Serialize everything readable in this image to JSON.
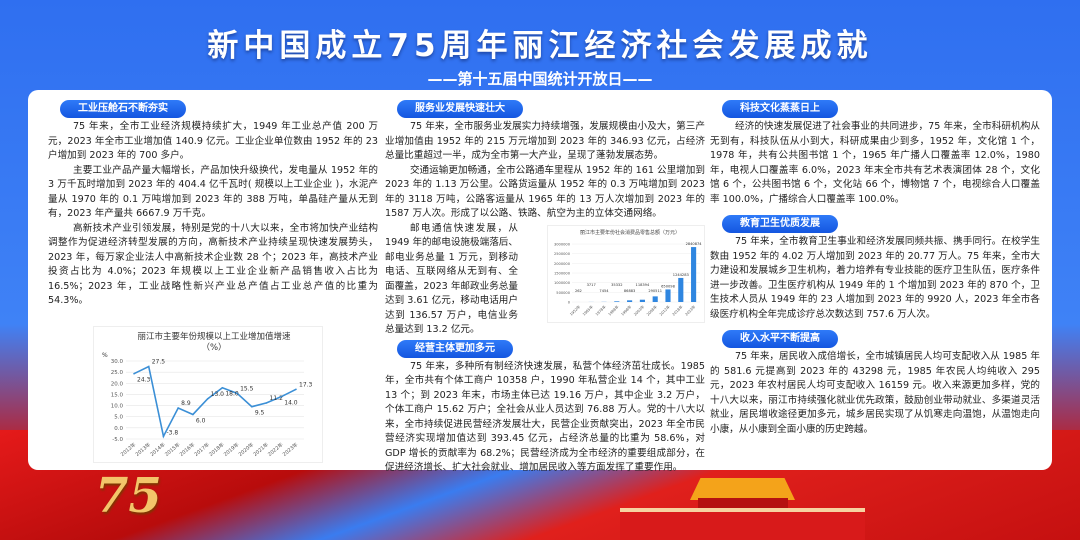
{
  "header": {
    "title": "新中国成立75周年丽江经济社会发展成就",
    "subtitle": "——第十五届中国统计开放日——"
  },
  "sections": {
    "industry": {
      "heading": "工业压舱石不断夯实",
      "paragraphs": [
        "75 年来，全市工业经济规模持续扩大，1949 年工业总产值 200 万元，2023 年全市工业增加值 140.9 亿元。工业企业单位数由 1952 年的 23 户增加到 2023 年的 700 多户。",
        "主要工业产品产量大幅增长，产品加快升级换代，发电量从 1952 年的 3 万千瓦时增加到 2023 年的 404.4 亿千瓦时( 规模以上工业企业 )，水泥产量从 1970 年的 0.1 万吨增加到 2023 年的 388 万吨，单晶硅产量从无到有，2023 年产量共 6667.9 万千克。",
        "高新技术产业引领发展，特别是党的十八大以来，全市将加快产业结构调整作为促进经济转型发展的方向，高新技术产业持续呈现快速发展势头，2023 年，每万家企业法人中高新技术企业数 28 个；2023 年，高技术产业投资占比为 4.0%；2023 年规模以上工业企业新产品销售收入占比为 16.5%；2023 年，工业战略性新兴产业总产值占工业总产值的比重为 54.3%。"
      ]
    },
    "services": {
      "heading": "服务业发展快速壮大",
      "paragraphs": [
        "75 年来，全市服务业发展实力持续增强，发展规模由小及大，第三产业增加值由 1952 年的 215 万元增加到 2023 年的 346.93 亿元，占经济总量比重超过一半，成为全市第一大产业，呈现了蓬勃发展态势。",
        "交通运输更加畅通，全市公路通车里程从 1952 年的 161 公里增加到 2023 年的 1.13 万公里。公路货运量从 1952 年的 0.3 万吨增加到 2023 年的 3118 万吨，公路客运量从 1965 年的 13 万人次增加到 2023 年的 1587 万人次。形成了以公路、铁路、航空为主的立体交通网络。",
        "邮电通信快速发展，从 1949 年的邮电设施极端落后、邮电业务总量 1 万元，到移动电话、互联网络从无到有、全面覆盖，2023 年邮政业务总量达到 3.61 亿元，移动电话用户达到 136.57 万户，电信业务总量达到 13.2 亿元。"
      ]
    },
    "business": {
      "heading": "经营主体更加多元",
      "paragraphs": [
        "75 年来，多种所有制经济快速发展，私营个体经济茁壮成长。1985 年，全市共有个体工商户 10358 户，1990 年私营企业 14 个，其中工业 13 个；到 2023 年末，市场主体已达 19.16 万户，其中企业 3.2 万户，个体工商户 15.62 万户；全社会从业人员达到 76.88 万人。党的十八大以来，全市持续促进民营经济发展壮大，民营企业贡献突出，2023 年全市民营经济实现增加值达到 393.45 亿元，占经济总量的比重为 58.6%，对 GDP 增长的贡献率为 68.2%；民营经济成为全市经济的重要组成部分，在促进经济增长、扩大社会就业、增加居民收入等方面发挥了重要作用。"
      ]
    },
    "culture": {
      "heading": "科技文化蒸蒸日上",
      "paragraphs": [
        "经济的快速发展促进了社会事业的共同进步，75 年来，全市科研机构从无到有，科技队伍从小到大，科研成果由少到多，1952 年，文化馆 1 个，1978 年，共有公共图书馆 1 个，1965 年广播人口覆盖率 12.0%，1980 年，电视人口覆盖率 6.0%，2023 年末全市共有艺术表演团体 28 个，文化馆 6 个，公共图书馆 6 个，文化站 66 个，博物馆 7 个，电视综合人口覆盖率 100.0%，广播综合人口覆盖率 100.0%。"
      ]
    },
    "education": {
      "heading": "教育卫生优质发展",
      "paragraphs": [
        "75 年来，全市教育卫生事业和经济发展同频共振、携手同行。在校学生数由 1952 年的 4.02 万人增加到 2023 年的 20.77 万人。75 年来，全市大力建设和发展城乡卫生机构，着力培养有专业技能的医疗卫生队伍，医疗条件进一步改善。卫生医疗机构从 1949 年的 1 个增加到 2023 年的 870 个，卫生技术人员从 1949 年的 23 人增加到 2023 年的 9920 人，2023 年全市各级医疗机构全年完成诊疗总次数达到 757.6 万人次。"
      ]
    },
    "income": {
      "heading": "收入水平不断提高",
      "paragraphs": [
        "75 年来，居民收入成倍增长，全市城镇居民人均可支配收入从 1985 年的 581.6 元提高到 2023 年的 43298 元，1985 年农民人均纯收入 295 元，2023 年农村居民人均可支配收入 16159 元。收入来源更加多样，党的十八大以来，丽江市持续强化就业优先政策，鼓励创业带动就业、多渠道灵活就业，居民增收途径更加多元，城乡居民实现了从饥寒走向温饱，从温饱走向小康，从小康到全面小康的历史跨越。"
      ]
    }
  },
  "footer": {
    "badge": "75"
  },
  "colors": {
    "accent": "#1a5fe8",
    "line": "#3b8fd6",
    "bar": "#2f86e0"
  },
  "chart_data": [
    {
      "type": "line",
      "title": "丽江市主要年份规模以上工业增加值增速",
      "subtitle": "（%）",
      "ylabel": "%",
      "categories": [
        "2012年",
        "2013年",
        "2014年",
        "2015年",
        "2016年",
        "2017年",
        "2018年",
        "2019年",
        "2020年",
        "2021年",
        "2022年",
        "2023年"
      ],
      "values": [
        24.3,
        27.5,
        -3.8,
        8.9,
        6.0,
        13.0,
        18.0,
        15.5,
        9.5,
        11.2,
        14.0,
        17.3
      ],
      "value_labels": [
        "24.3",
        "27.5",
        "-3.8",
        "8.9",
        "6.0",
        "13.0",
        "18.0",
        "15.5",
        "9.5",
        "11.2",
        "14.0",
        "17.3"
      ],
      "yticks": [
        "30.0",
        "25.0",
        "20.0",
        "15.0",
        "10.0",
        "5.0",
        "0.0",
        "-5.0"
      ],
      "ylim": [
        -5,
        30
      ],
      "grid": true
    },
    {
      "type": "bar",
      "title": "丽江市主要年份社会消费品零售总额（万元）",
      "categories": [
        "1952年",
        "1965年",
        "1978年",
        "1988年",
        "1998年",
        "2003年",
        "2008年",
        "2012年",
        "2018年",
        "2023年"
      ],
      "values": [
        262,
        3717,
        7454,
        35332,
        86883,
        118394,
        290511,
        650098,
        1244283,
        2840874
      ],
      "yticks": [
        "3000000",
        "2500000",
        "2000000",
        "1500000",
        "1000000",
        "500000",
        "0"
      ],
      "ylim": [
        0,
        3000000
      ],
      "grid": true
    }
  ]
}
